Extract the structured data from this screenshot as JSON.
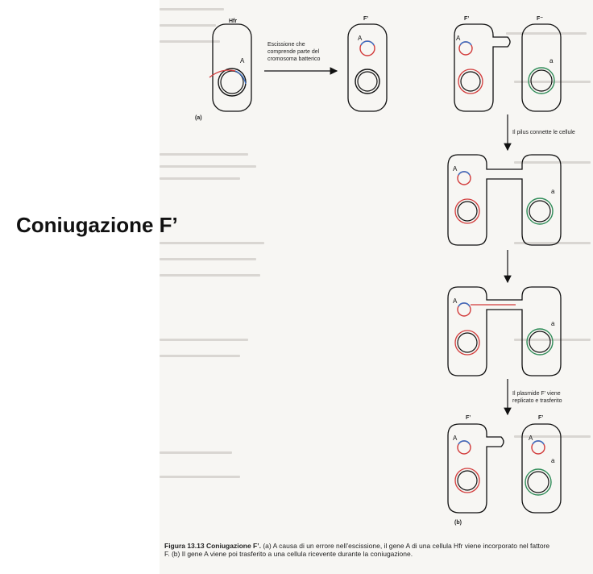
{
  "slide": {
    "title": "Coniugazione F’"
  },
  "figure": {
    "panel_a": {
      "label": "(a)",
      "cell_hfr_label": "Hfr",
      "cell_fprime_label": "F’",
      "gene_A": "A",
      "arrow_text_1": "Escissione che",
      "arrow_text_2": "comprende parte del",
      "arrow_text_3": "cromosoma batterico"
    },
    "panel_b": {
      "label": "(b)",
      "donor_label": "F’",
      "recipient_label": "F⁻",
      "gene_A": "A",
      "gene_a": "a",
      "step1_text": "Il pilus connette le cellule",
      "step2_text_1": "Il plasmide F’ viene",
      "step2_text_2": "replicato e trasferito",
      "final_left_label": "F’",
      "final_right_label": "F’"
    },
    "caption": {
      "head": "Figura 13.13 Coniugazione F’.",
      "body": " (a) A causa di un errore nell’escissione, il gene A di una cellula Hfr viene incorporato nel fattore F. (b) Il gene A viene poi trasferito a una cellula ricevente durante la coniugazione."
    }
  }
}
